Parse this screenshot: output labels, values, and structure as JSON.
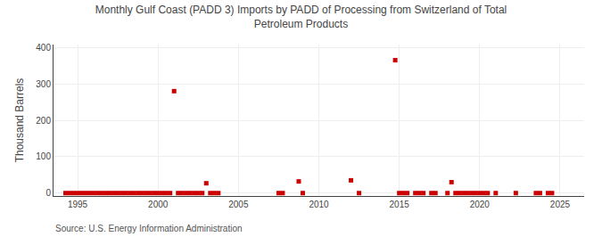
{
  "chart_data": {
    "type": "scatter",
    "title": "Monthly Gulf Coast (PADD 3) Imports by PADD of Processing from Switzerland of Total\nPetroleum Products",
    "ylabel": "Thousand Barrels",
    "annotations": [
      "Source: U.S. Energy Information Administration"
    ],
    "x": [
      1994.25,
      1994.5,
      1994.75,
      1995.0,
      1995.25,
      1995.5,
      1995.75,
      1996.0,
      1996.25,
      1996.5,
      1996.75,
      1997.0,
      1997.25,
      1997.5,
      1997.75,
      1998.0,
      1998.25,
      1998.5,
      1998.75,
      1999.0,
      1999.25,
      1999.5,
      1999.75,
      2000.0,
      2000.25,
      2000.5,
      2000.75,
      2001.0,
      2001.25,
      2001.5,
      2001.75,
      2002.0,
      2002.25,
      2002.5,
      2002.75,
      2003.0,
      2003.25,
      2003.5,
      2003.75,
      2007.5,
      2007.75,
      2008.75,
      2009.0,
      2012.0,
      2012.5,
      2014.75,
      2015.0,
      2015.25,
      2015.5,
      2016.0,
      2016.25,
      2016.5,
      2017.0,
      2017.25,
      2018.0,
      2018.25,
      2018.5,
      2018.75,
      2019.0,
      2019.25,
      2019.5,
      2019.75,
      2020.0,
      2020.25,
      2020.5,
      2021.0,
      2022.25,
      2023.5,
      2023.75,
      2024.25,
      2024.5
    ],
    "values": [
      0,
      0,
      0,
      0,
      0,
      0,
      0,
      0,
      0,
      0,
      0,
      0,
      0,
      0,
      0,
      0,
      0,
      0,
      0,
      0,
      0,
      0,
      0,
      0,
      0,
      0,
      0,
      280,
      0,
      0,
      0,
      0,
      0,
      0,
      0,
      27,
      0,
      0,
      0,
      0,
      0,
      32,
      0,
      35,
      0,
      365,
      0,
      0,
      0,
      0,
      0,
      0,
      0,
      0,
      0,
      30,
      0,
      0,
      0,
      0,
      0,
      0,
      0,
      0,
      0,
      0,
      0,
      0,
      0,
      0,
      0
    ],
    "color": "#cc0000",
    "marker": "square",
    "xlim": [
      1993.5,
      2026.5
    ],
    "ylim": [
      -8,
      408
    ],
    "xticks": [
      1995,
      2000,
      2005,
      2010,
      2015,
      2020,
      2025
    ],
    "yticks": [
      0,
      100,
      200,
      300,
      400
    ],
    "grid": true
  }
}
